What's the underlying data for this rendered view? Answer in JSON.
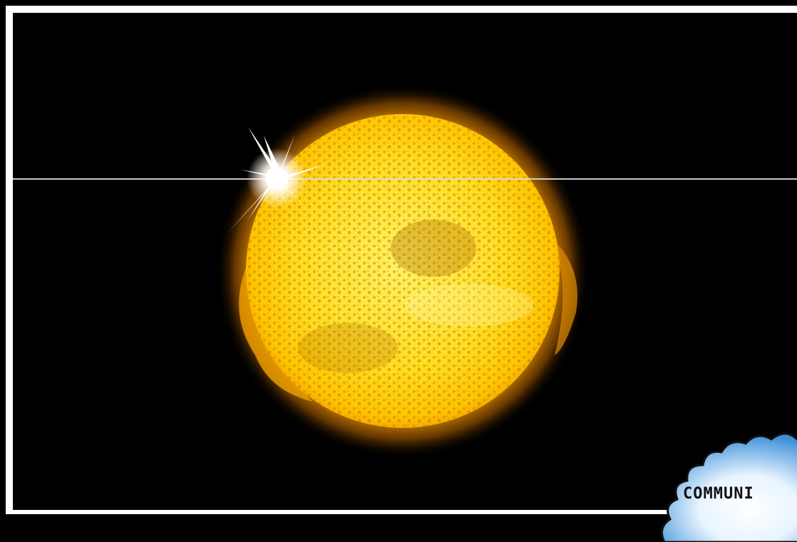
{
  "badge": {
    "text": "COMMUNI"
  },
  "colors": {
    "background": "#000000",
    "frame_border": "#ffffff",
    "sun_core": "#ffe14a",
    "sun_edge": "#f5a800",
    "sun_granules": "#c98a00",
    "flare": "#ffffff",
    "badge_light": "#e8f4ff",
    "badge_dark": "#3a8fd8",
    "scan_line": "#dcdcdc"
  },
  "icons": {
    "sun": "sun-icon",
    "flare": "lens-flare-icon",
    "badge": "burst-badge-icon"
  }
}
